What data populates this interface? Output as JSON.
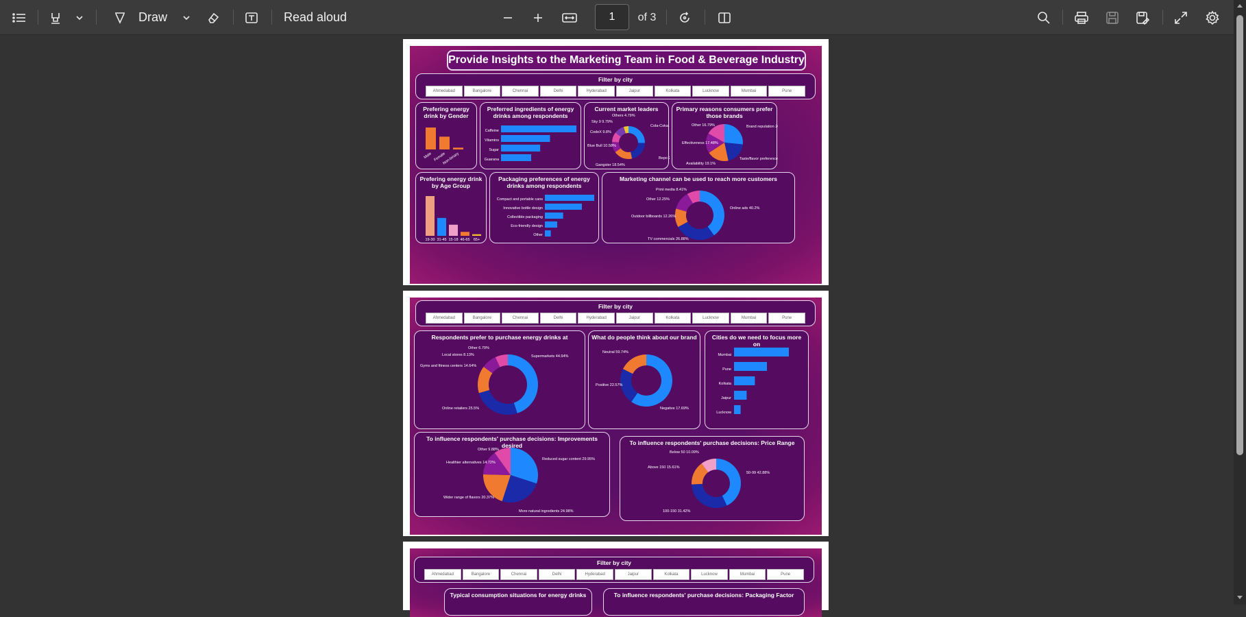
{
  "toolbar": {
    "draw_label": "Draw",
    "read_aloud_label": "Read aloud",
    "page_current": "1",
    "page_total": "of 3"
  },
  "colors": {
    "blue": "#1e88ff",
    "navy": "#1a2aa8",
    "orange": "#f07a30",
    "pink": "#e04aa8",
    "purple": "#8a1a9a",
    "yellow": "#f0c030",
    "peach": "#f0a080",
    "bg": "#333333"
  },
  "cities": [
    "Ahmedabad",
    "Bangalore",
    "Chennai",
    "Delhi",
    "Hyderabad",
    "Jaipur",
    "Kolkata",
    "Lucknow",
    "Mumbai",
    "Pune"
  ],
  "page1": {
    "title": "Provide Insights to the Marketing Team in Food & Beverage Industry",
    "filter_title": "Filter by city",
    "gender": {
      "title": "Prefering energy drink by Gender",
      "chart_data": {
        "type": "bar",
        "categories": [
          "Male",
          "Female",
          "Non-binary"
        ],
        "values": [
          60,
          35,
          5
        ]
      }
    },
    "ingredients": {
      "title": "Preferred ingredients of energy drinks among respondents",
      "chart_data": {
        "type": "bar",
        "categories": [
          "Caffeine",
          "Vitamins",
          "Sugar",
          "Guarana"
        ],
        "values": [
          100,
          65,
          52,
          40
        ]
      }
    },
    "leaders": {
      "title": "Current market leaders",
      "labels": [
        "Others 4.79%",
        "Sky 9 9.79%",
        "CodeX 9.8%",
        "Blue Bull 10.58%",
        "Gangster 18.54%",
        "Bepo 21.12%",
        "Cola-Coka 25.38%"
      ],
      "chart_data": {
        "type": "pie",
        "categories": [
          "Cola-Coka",
          "Bepo",
          "Gangster",
          "Blue Bull",
          "CodeX",
          "Sky 9",
          "Others"
        ],
        "values": [
          25.38,
          21.12,
          18.54,
          10.58,
          9.8,
          9.79,
          4.79
        ]
      }
    },
    "reasons": {
      "title": "Primary reasons consumers prefer those brands",
      "labels": [
        "Other 16.79%",
        "Brand reputation 26.52%",
        "Effectiveness 17.48%",
        "Availability 19.1%",
        "Taste/flavor preference 20.11%"
      ],
      "chart_data": {
        "type": "pie",
        "categories": [
          "Brand reputation",
          "Taste/flavor preference",
          "Availability",
          "Effectiveness",
          "Other"
        ],
        "values": [
          26.52,
          20.11,
          19.1,
          17.48,
          16.79
        ]
      }
    },
    "age": {
      "title": "Prefering energy drink by Age Group",
      "chart_data": {
        "type": "bar",
        "categories": [
          "19-30",
          "31-45",
          "15-18",
          "46-65",
          "65+"
        ],
        "values": [
          100,
          45,
          28,
          10,
          4
        ]
      }
    },
    "packaging": {
      "title": "Packaging preferences of energy drinks among respondents",
      "chart_data": {
        "type": "bar",
        "categories": [
          "Compact and portable cans",
          "Innovative bottle design",
          "Collectible packaging",
          "Eco-friendly design",
          "Other"
        ],
        "values": [
          100,
          75,
          37,
          25,
          12
        ]
      }
    },
    "marketing": {
      "title": "Marketing channel can be used to reach more customers",
      "labels": [
        "Print media 8.41%",
        "Other 12.25%",
        "Outdoor billboards 12.26%",
        "Online ads 40.2%",
        "TV commercials 26.88%"
      ],
      "chart_data": {
        "type": "pie",
        "categories": [
          "Online ads",
          "TV commercials",
          "Outdoor billboards",
          "Other",
          "Print media"
        ],
        "values": [
          40.2,
          26.88,
          12.26,
          12.25,
          8.41
        ]
      }
    }
  },
  "page2": {
    "filter_title": "Filter by city",
    "purchase": {
      "title": "Respondents prefer to purchase energy drinks at",
      "labels": [
        "Other 6.79%",
        "Local stores 8.13%",
        "Gyms and fitness centers 14.64%",
        "Supermarkets 44.94%",
        "Online retailers 25.5%"
      ],
      "chart_data": {
        "type": "pie",
        "categories": [
          "Supermarkets",
          "Online retailers",
          "Gyms and fitness centers",
          "Local stores",
          "Other"
        ],
        "values": [
          44.94,
          25.5,
          14.64,
          8.13,
          6.79
        ]
      }
    },
    "brand": {
      "title": "What do people think about our brand",
      "labels": [
        "Negative 17.69%",
        "Positive 22.57%",
        "Neutral 59.74%"
      ],
      "chart_data": {
        "type": "pie",
        "categories": [
          "Neutral",
          "Positive",
          "Negative"
        ],
        "values": [
          59.74,
          22.57,
          17.69
        ]
      }
    },
    "focus": {
      "title": "Cities do we need to focus more on",
      "chart_data": {
        "type": "bar",
        "categories": [
          "Mumbai",
          "Pune",
          "Kolkata",
          "Jaipur",
          "Lucknow"
        ],
        "values": [
          100,
          60,
          38,
          23,
          12
        ]
      }
    },
    "improve": {
      "title": "To influence respondents' purchase decisions: Improvements desired",
      "labels": [
        "Other 9.88%",
        "Healthier alternatives 14.72%",
        "Reduced sugar content 29.95%",
        "Wider range of flavors 20.37%",
        "More natural ingredients 24.98%"
      ],
      "chart_data": {
        "type": "pie",
        "categories": [
          "Reduced sugar content",
          "More natural ingredients",
          "Wider range of flavors",
          "Healthier alternatives",
          "Other"
        ],
        "values": [
          29.95,
          24.98,
          20.37,
          14.72,
          9.88
        ]
      }
    },
    "price": {
      "title": "To influence respondents' purchase decisions: Price Range",
      "labels": [
        "Below 50 10.09%",
        "Above 150 15.61%",
        "50-99 42.88%",
        "100-150 31.42%"
      ],
      "chart_data": {
        "type": "pie",
        "categories": [
          "50-99",
          "100-150",
          "Above 150",
          "Below 50"
        ],
        "values": [
          42.88,
          31.42,
          15.61,
          10.09
        ]
      }
    }
  },
  "page3": {
    "filter_title": "Filter by city",
    "situations_title": "Typical consumption situations for energy drinks",
    "packaging_factor_title": "To influence respondents' purchase decisions: Packaging Factor"
  }
}
